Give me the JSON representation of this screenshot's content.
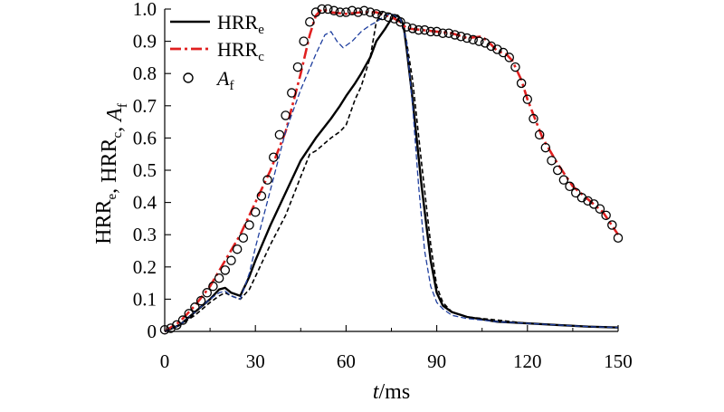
{
  "chart_data": {
    "type": "line",
    "title": "",
    "xlabel": {
      "var": "t",
      "unit": "/ms"
    },
    "ylabel": [
      {
        "main": "HRR",
        "sub": "e",
        "italic": false
      },
      {
        "sep": ", "
      },
      {
        "main": "HRR",
        "sub": "c",
        "italic": false
      },
      {
        "sep": ", "
      },
      {
        "main": "A",
        "sub": "f",
        "italic": true
      }
    ],
    "xlim": [
      0,
      150
    ],
    "ylim": [
      0,
      1.0
    ],
    "xticks": [
      "0",
      "30",
      "60",
      "90",
      "120",
      "150"
    ],
    "xtick_values": [
      0,
      30,
      60,
      90,
      120,
      150
    ],
    "yticks": [
      "0",
      "0.1",
      "0.2",
      "0.3",
      "0.4",
      "0.5",
      "0.6",
      "0.7",
      "0.8",
      "0.9",
      "1.0"
    ],
    "ytick_values": [
      0,
      0.1,
      0.2,
      0.3,
      0.4,
      0.5,
      0.6,
      0.7,
      0.8,
      0.9,
      1.0
    ],
    "grid": false,
    "legend_position": "top-left",
    "legend": [
      {
        "main": "HRR",
        "sub": "e",
        "italic": false,
        "marker": "solid-line",
        "color": "#000000"
      },
      {
        "main": "HRR",
        "sub": "c",
        "italic": false,
        "marker": "dash-dot-line",
        "color": "#e02020"
      },
      {
        "main": "A",
        "sub": "f",
        "italic": true,
        "marker": "open-circle",
        "color": "#000000"
      }
    ],
    "series": [
      {
        "name": "",
        "style": "solid",
        "color": "#000000",
        "x": [
          0,
          5,
          10,
          15,
          18,
          20,
          22,
          25,
          28,
          30,
          35,
          40,
          45,
          50,
          55,
          58,
          60,
          63,
          65,
          68,
          70,
          73,
          75,
          77,
          78,
          79,
          80,
          82,
          85,
          88,
          90,
          92,
          95,
          100,
          110,
          120,
          130,
          140,
          150
        ],
        "y": [
          0,
          0.02,
          0.06,
          0.1,
          0.13,
          0.135,
          0.12,
          0.11,
          0.17,
          0.22,
          0.33,
          0.43,
          0.53,
          0.6,
          0.66,
          0.7,
          0.73,
          0.77,
          0.8,
          0.85,
          0.9,
          0.94,
          0.97,
          0.98,
          0.97,
          0.95,
          0.88,
          0.72,
          0.45,
          0.22,
          0.12,
          0.08,
          0.06,
          0.045,
          0.03,
          0.025,
          0.02,
          0.015,
          0.012
        ]
      },
      {
        "name": "",
        "style": "dash-dot",
        "color": "#e02020",
        "x": [
          0,
          5,
          10,
          15,
          20,
          25,
          30,
          35,
          40,
          45,
          48,
          50,
          52,
          55,
          60,
          65,
          70,
          75,
          78,
          80,
          85,
          90,
          95,
          100,
          105,
          108,
          110,
          113,
          115,
          118,
          120,
          125,
          130,
          135,
          140,
          145,
          150
        ],
        "y": [
          0,
          0.03,
          0.08,
          0.14,
          0.22,
          0.3,
          0.4,
          0.5,
          0.62,
          0.8,
          0.92,
          0.98,
          1.0,
          0.99,
          0.985,
          0.99,
          0.99,
          0.975,
          0.96,
          0.94,
          0.935,
          0.93,
          0.925,
          0.91,
          0.915,
          0.89,
          0.87,
          0.86,
          0.84,
          0.78,
          0.72,
          0.6,
          0.52,
          0.45,
          0.41,
          0.37,
          0.3
        ]
      },
      {
        "name": "",
        "style": "dashed",
        "color": "#000000",
        "x": [
          0,
          5,
          10,
          15,
          18,
          20,
          22,
          25,
          28,
          30,
          35,
          40,
          45,
          48,
          50,
          55,
          58,
          60,
          63,
          65,
          68,
          70,
          72,
          75,
          77,
          78,
          79,
          80,
          82,
          85,
          88,
          90,
          92,
          95,
          100,
          110,
          120,
          130,
          140,
          150
        ],
        "y": [
          0,
          0.02,
          0.05,
          0.09,
          0.11,
          0.12,
          0.11,
          0.1,
          0.13,
          0.17,
          0.27,
          0.36,
          0.48,
          0.55,
          0.56,
          0.6,
          0.62,
          0.64,
          0.72,
          0.76,
          0.85,
          0.96,
          0.99,
          0.985,
          0.97,
          0.96,
          0.94,
          0.9,
          0.78,
          0.52,
          0.27,
          0.14,
          0.09,
          0.06,
          0.045,
          0.035,
          0.025,
          0.02,
          0.015,
          0.012
        ]
      },
      {
        "name": "",
        "style": "dashed-thin",
        "color": "#1f3f9f",
        "x": [
          0,
          5,
          10,
          15,
          18,
          20,
          22,
          25,
          28,
          30,
          35,
          40,
          45,
          50,
          53,
          55,
          57,
          59,
          62,
          65,
          68,
          70,
          73,
          75,
          78,
          80,
          82,
          84,
          86,
          88,
          90,
          92,
          95,
          100,
          110,
          120,
          130,
          140,
          150
        ],
        "y": [
          0,
          0.02,
          0.06,
          0.1,
          0.12,
          0.125,
          0.11,
          0.1,
          0.18,
          0.26,
          0.44,
          0.62,
          0.75,
          0.86,
          0.92,
          0.93,
          0.9,
          0.88,
          0.9,
          0.93,
          0.95,
          0.96,
          0.98,
          0.985,
          0.97,
          0.9,
          0.7,
          0.45,
          0.25,
          0.14,
          0.09,
          0.07,
          0.05,
          0.04,
          0.03,
          0.025,
          0.02,
          0.015,
          0.012
        ]
      },
      {
        "name": "",
        "style": "markers",
        "color": "#000000",
        "x": [
          0,
          2,
          4,
          6,
          8,
          10,
          12,
          14,
          16,
          18,
          20,
          22,
          24,
          26,
          28,
          30,
          32,
          34,
          36,
          38,
          40,
          42,
          44,
          46,
          48,
          50,
          52,
          54,
          56,
          58,
          60,
          62,
          64,
          66,
          68,
          70,
          72,
          74,
          76,
          78,
          80,
          82,
          84,
          86,
          88,
          90,
          92,
          94,
          96,
          98,
          100,
          102,
          104,
          106,
          108,
          110,
          112,
          114,
          116,
          118,
          120,
          122,
          124,
          126,
          128,
          130,
          132,
          134,
          136,
          138,
          140,
          142,
          144,
          146,
          148,
          150
        ],
        "y": [
          0.005,
          0.01,
          0.02,
          0.035,
          0.055,
          0.075,
          0.095,
          0.12,
          0.14,
          0.165,
          0.19,
          0.22,
          0.255,
          0.29,
          0.33,
          0.37,
          0.42,
          0.47,
          0.54,
          0.61,
          0.67,
          0.74,
          0.82,
          0.9,
          0.96,
          0.99,
          1.0,
          1.0,
          0.995,
          0.99,
          0.99,
          0.995,
          0.99,
          0.995,
          0.99,
          0.985,
          0.98,
          0.975,
          0.97,
          0.96,
          0.945,
          0.94,
          0.935,
          0.935,
          0.93,
          0.93,
          0.925,
          0.925,
          0.92,
          0.915,
          0.91,
          0.905,
          0.9,
          0.895,
          0.885,
          0.875,
          0.865,
          0.85,
          0.82,
          0.77,
          0.72,
          0.66,
          0.61,
          0.57,
          0.53,
          0.5,
          0.47,
          0.45,
          0.43,
          0.415,
          0.405,
          0.395,
          0.38,
          0.36,
          0.33,
          0.29
        ]
      }
    ]
  }
}
